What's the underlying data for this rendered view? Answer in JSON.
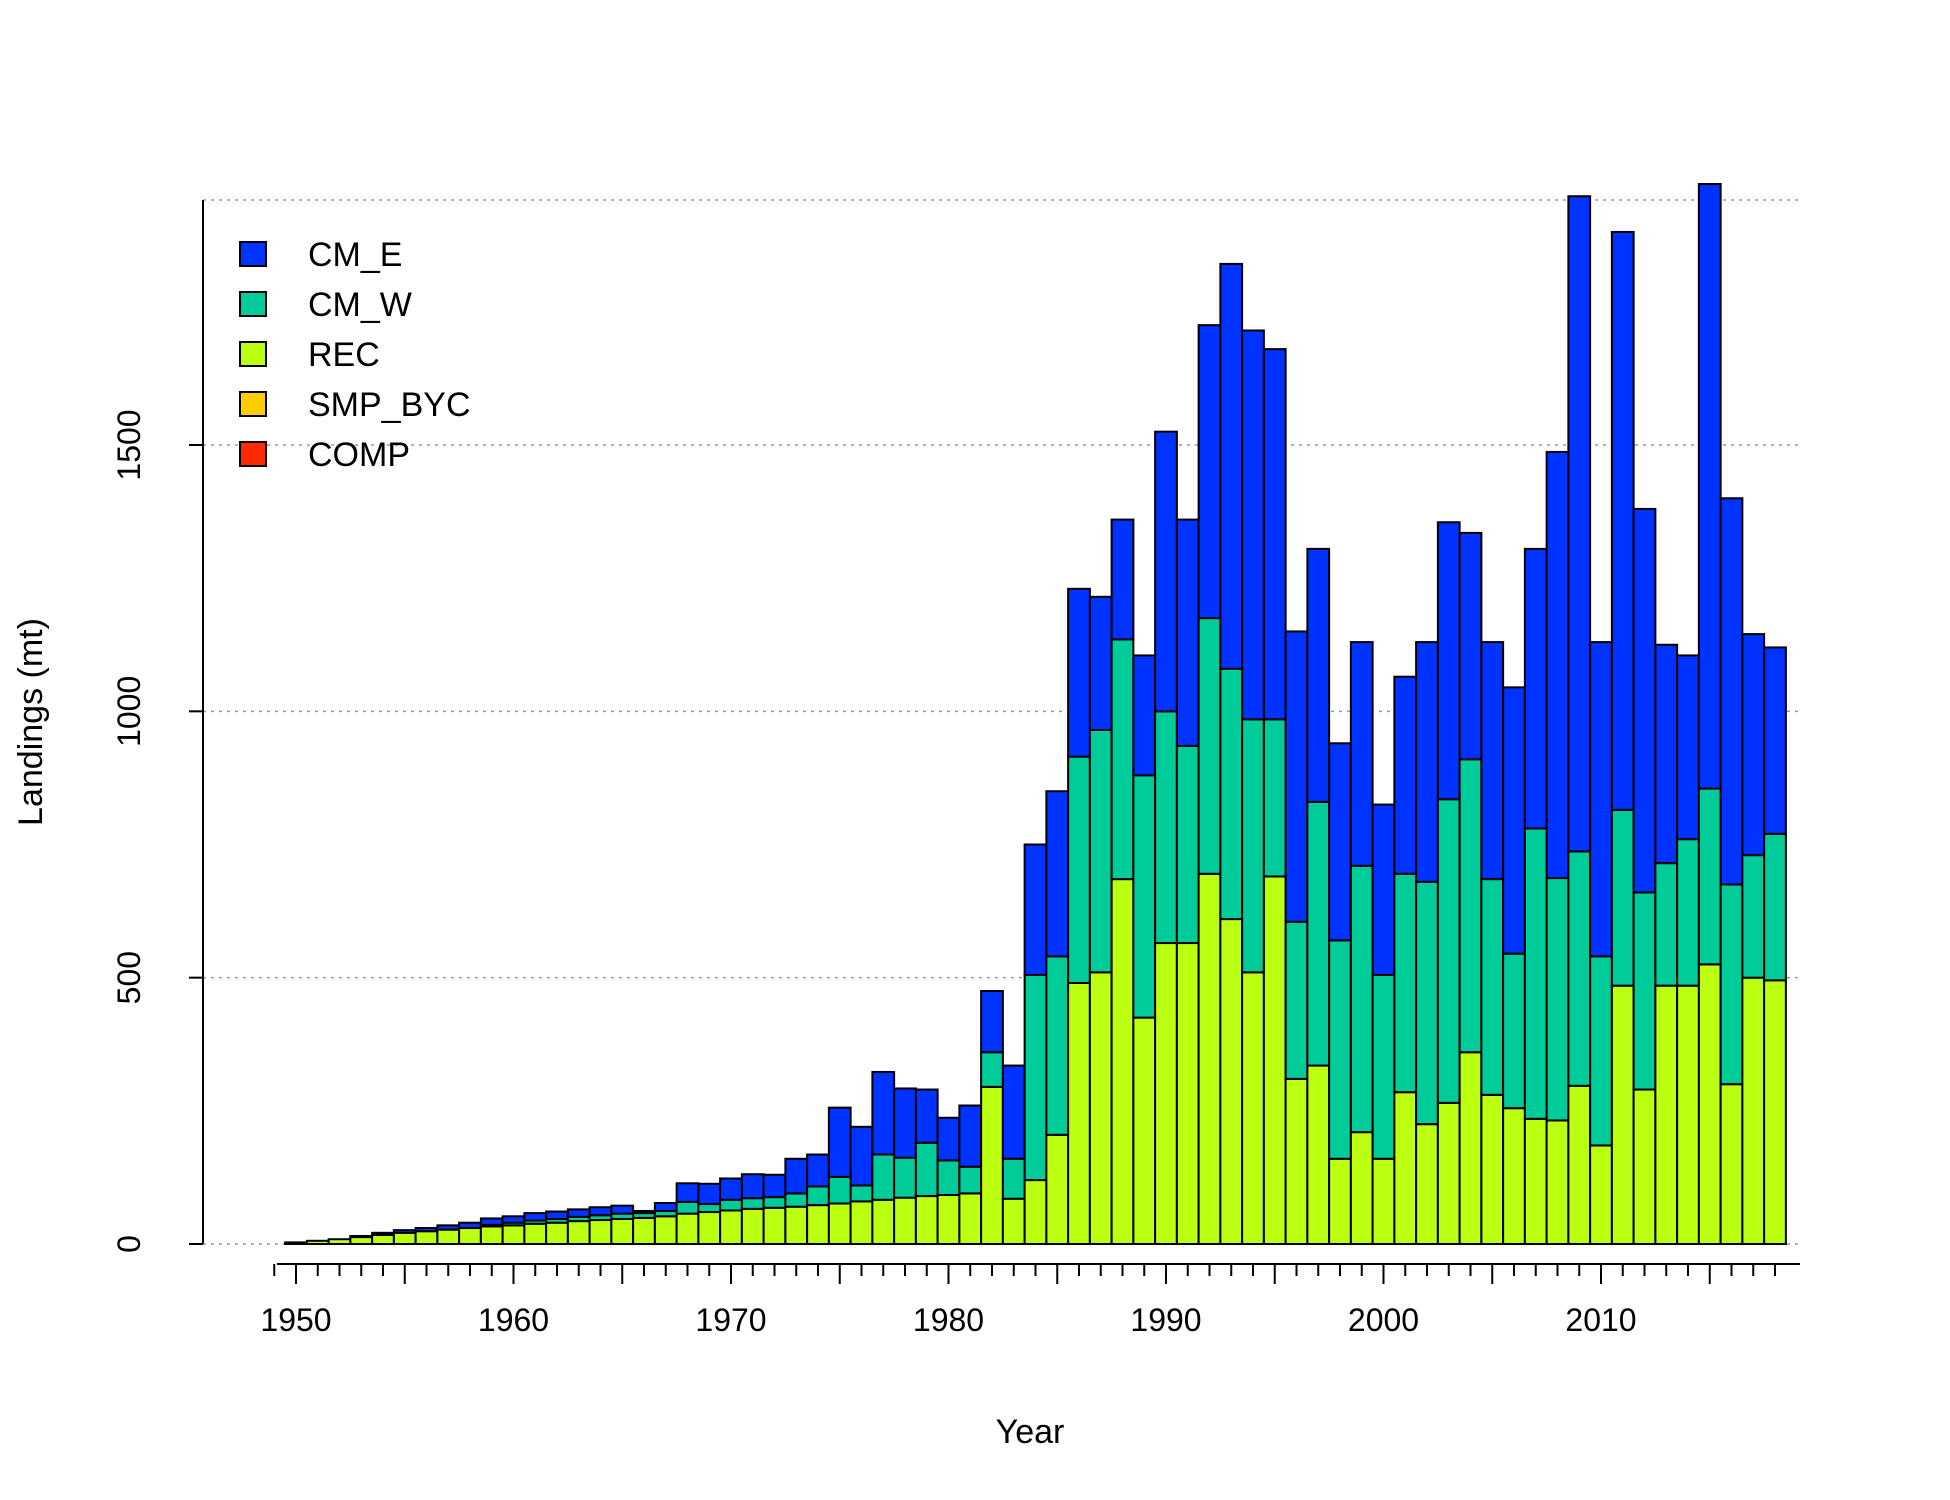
{
  "chart_data": {
    "type": "bar",
    "stacked": true,
    "title": "",
    "xlabel": "Year",
    "ylabel": "Landings (mt)",
    "xlim": [
      1950,
      2018
    ],
    "ylim": [
      0,
      1960
    ],
    "x_ticks": [
      1950,
      1960,
      1970,
      1980,
      1990,
      2000,
      2010
    ],
    "y_ticks": [
      0,
      500,
      1000,
      1500
    ],
    "grid": "horizontal dotted",
    "legend_position": "top-left",
    "categories": [
      1950,
      1951,
      1952,
      1953,
      1954,
      1955,
      1956,
      1957,
      1958,
      1959,
      1960,
      1961,
      1962,
      1963,
      1964,
      1965,
      1966,
      1967,
      1968,
      1969,
      1970,
      1971,
      1972,
      1973,
      1974,
      1975,
      1976,
      1977,
      1978,
      1979,
      1980,
      1981,
      1982,
      1983,
      1984,
      1985,
      1986,
      1987,
      1988,
      1989,
      1990,
      1991,
      1992,
      1993,
      1994,
      1995,
      1996,
      1997,
      1998,
      1999,
      2000,
      2001,
      2002,
      2003,
      2004,
      2005,
      2006,
      2007,
      2008,
      2009,
      2010,
      2011,
      2012,
      2013,
      2014,
      2015,
      2016,
      2017,
      2018
    ],
    "series": [
      {
        "name": "COMP",
        "color": "#ff2a00",
        "values": [
          0,
          0,
          0,
          0,
          0,
          0,
          0,
          0,
          0,
          0,
          0,
          0,
          0,
          0,
          0,
          0,
          0,
          0,
          0,
          0,
          0,
          0,
          0,
          0,
          0,
          0,
          0,
          0,
          0,
          0,
          0,
          0,
          0,
          0,
          0,
          0,
          0,
          0,
          0,
          0,
          0,
          0,
          0,
          0,
          0,
          0,
          0,
          0,
          0,
          0,
          0,
          0,
          0,
          0,
          0,
          0,
          0,
          0,
          0,
          0,
          0,
          0,
          0,
          0,
          0,
          0,
          0,
          0,
          0
        ]
      },
      {
        "name": "SMP_BYC",
        "color": "#ffcc00",
        "values": [
          0,
          0,
          0,
          0,
          0,
          0,
          0,
          0,
          0,
          0,
          0,
          0,
          0,
          0,
          0,
          0,
          0,
          0,
          0,
          0,
          0,
          0,
          0,
          0,
          0,
          0,
          0,
          0,
          0,
          0,
          0,
          0,
          0,
          0,
          0,
          0,
          0,
          0,
          0,
          0,
          0,
          0,
          0,
          0,
          0,
          0,
          0,
          0,
          0,
          0,
          0,
          0,
          0,
          0,
          0,
          0,
          0,
          0,
          0,
          0,
          0,
          0,
          0,
          0,
          0,
          0,
          0,
          0,
          0
        ]
      },
      {
        "name": "REC",
        "color": "#bbff11",
        "values": [
          3,
          6,
          9,
          13,
          17,
          21,
          24,
          27,
          30,
          33,
          35,
          38,
          40,
          43,
          45,
          47,
          49,
          52,
          57,
          60,
          63,
          66,
          68,
          70,
          73,
          76,
          80,
          83,
          87,
          90,
          92,
          95,
          295,
          85,
          120,
          205,
          490,
          510,
          685,
          425,
          565,
          565,
          695,
          610,
          510,
          690,
          310,
          335,
          160,
          210,
          160,
          285,
          225,
          265,
          360,
          280,
          255,
          235,
          232,
          297,
          185,
          485,
          290,
          485,
          485,
          525,
          300,
          500,
          495
        ]
      },
      {
        "name": "CM_W",
        "color": "#00cc99",
        "values": [
          0,
          0,
          0,
          0,
          0,
          0,
          0,
          0,
          0,
          3,
          5,
          6,
          7,
          8,
          9,
          10,
          9,
          10,
          22,
          15,
          20,
          20,
          20,
          25,
          35,
          50,
          30,
          85,
          75,
          100,
          65,
          50,
          65,
          75,
          385,
          335,
          425,
          455,
          450,
          455,
          435,
          370,
          480,
          470,
          475,
          295,
          295,
          495,
          410,
          500,
          345,
          410,
          455,
          570,
          550,
          405,
          290,
          545,
          455,
          440,
          355,
          330,
          370,
          230,
          275,
          330,
          375,
          230,
          275
        ]
      },
      {
        "name": "CM_E",
        "color": "#0033ff",
        "values": [
          0,
          0,
          0,
          2,
          4,
          5,
          6,
          8,
          10,
          12,
          12,
          14,
          14,
          14,
          15,
          15,
          4,
          15,
          35,
          38,
          40,
          45,
          42,
          65,
          60,
          130,
          110,
          155,
          130,
          100,
          80,
          115,
          115,
          175,
          245,
          310,
          315,
          250,
          225,
          225,
          525,
          425,
          550,
          760,
          730,
          695,
          545,
          475,
          370,
          420,
          320,
          370,
          450,
          520,
          425,
          445,
          500,
          525,
          800,
          1230,
          590,
          1085,
          720,
          410,
          345,
          1135,
          725,
          415,
          350
        ]
      }
    ]
  }
}
